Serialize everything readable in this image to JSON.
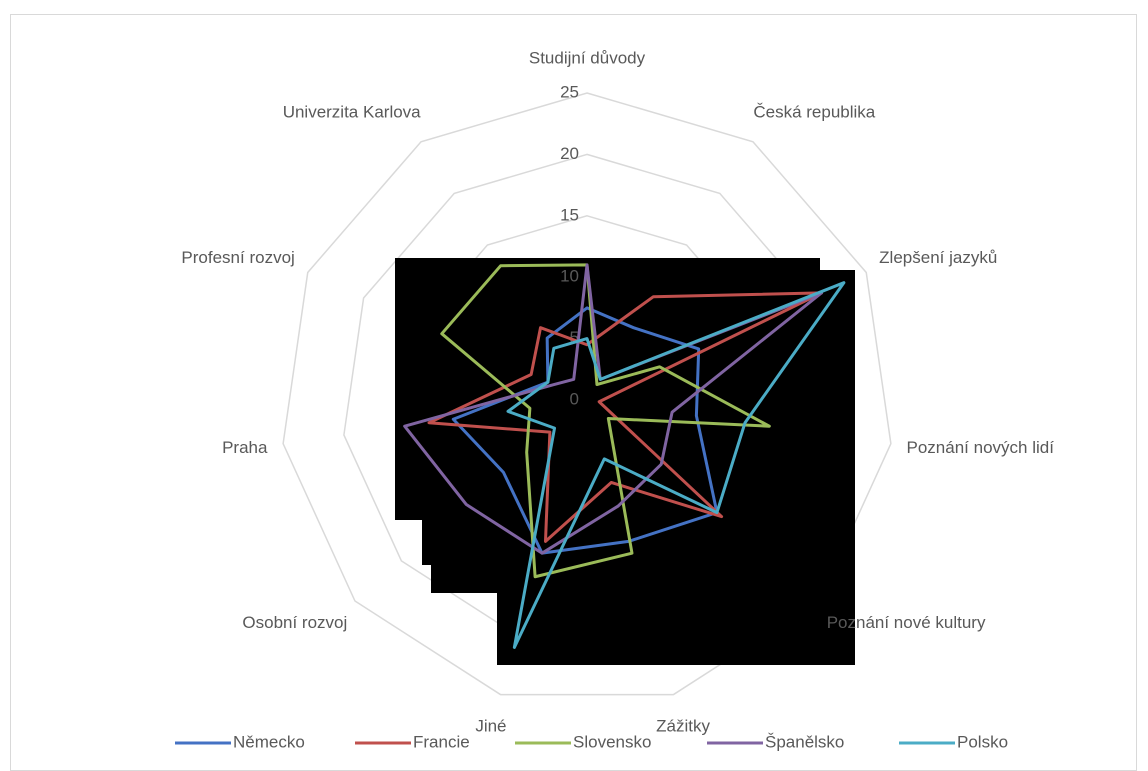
{
  "chart_data": {
    "type": "radar",
    "categories": [
      "Studijní důvody",
      "Česká republika",
      "Zlepšení jazyků",
      "Poznání nových lidí",
      "Poznání nové kultury",
      "Zážitky",
      "Jiné",
      "Osobní rozvoj",
      "Praha",
      "Profesní rozvoj",
      "Univerzita Karlova"
    ],
    "ylim": [
      0,
      25
    ],
    "yticks": [
      0,
      5,
      10,
      15,
      20,
      25
    ],
    "grid": true,
    "legend": "bottom",
    "series": [
      {
        "name": "Německo",
        "color": "#4472c4",
        "values": [
          7.5,
          7,
          10,
          9,
          14,
          12,
          13,
          9,
          11,
          3.5,
          6
        ]
      },
      {
        "name": "Francie",
        "color": "#c0504d",
        "values": [
          4.5,
          10,
          21,
          1,
          14.5,
          7,
          12,
          4,
          13,
          5,
          7
        ]
      },
      {
        "name": "Slovensko",
        "color": "#9bbb59",
        "values": [
          11,
          1.5,
          6.5,
          15,
          2.3,
          13,
          15,
          6.5,
          4.7,
          13,
          13
        ]
      },
      {
        "name": "Španělsko",
        "color": "#8064a2",
        "values": [
          11,
          2,
          21,
          7,
          8,
          9,
          13,
          13,
          15,
          3,
          2
        ]
      },
      {
        "name": "Polsko",
        "color": "#4bacc6",
        "values": [
          5,
          2,
          23,
          13,
          14,
          5,
          21,
          3.5,
          6.5,
          3.5,
          5
        ]
      }
    ]
  }
}
